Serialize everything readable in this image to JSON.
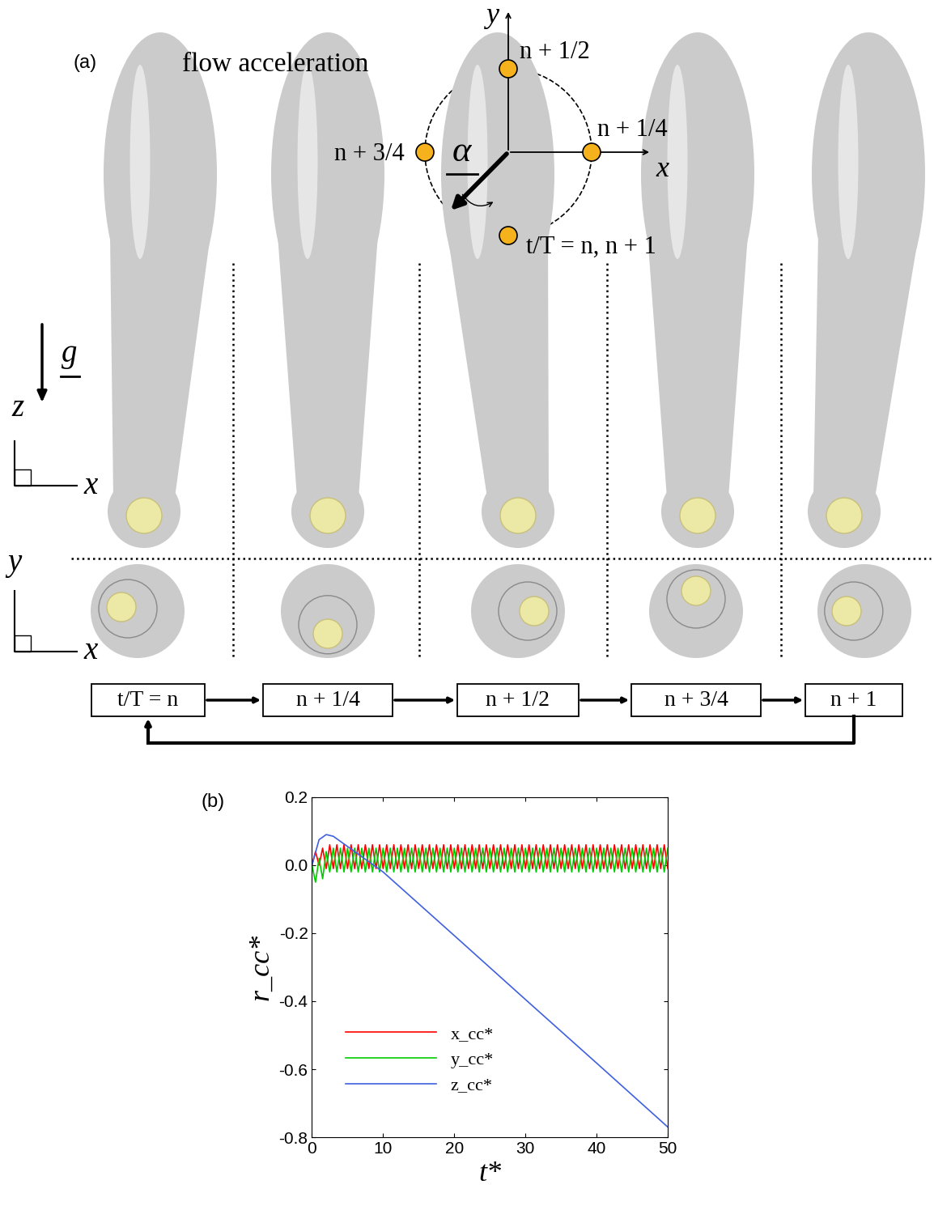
{
  "panel_a": {
    "label": "(a)",
    "title": "flow acceleration",
    "vector": "α",
    "axis_x": "x",
    "axis_y": "y",
    "phase_labels": {
      "top": "n + 1/2",
      "right": "n + 1/4",
      "left": "n + 3/4",
      "bottom": "t/T = n, n + 1"
    },
    "gravity": "g",
    "side_view_axes": [
      "z",
      "x"
    ],
    "top_view_axes": [
      "y",
      "x"
    ],
    "timeline": [
      "t/T = n",
      "n + 1/4",
      "n + 1/2",
      "n + 3/4",
      "n + 1"
    ]
  },
  "chart_data": {
    "type": "line",
    "panel_label": "(b)",
    "xlabel": "t*",
    "ylabel": "r_cc*",
    "xlim": [
      0,
      50
    ],
    "ylim": [
      -0.8,
      0.2
    ],
    "xticks": [
      0,
      10,
      20,
      30,
      40,
      50
    ],
    "yticks": [
      -0.8,
      -0.6,
      -0.4,
      -0.2,
      {
        "value": 0,
        "label": "0.0"
      },
      0.2
    ],
    "legend": "lower left",
    "series": [
      {
        "name": "x_cc*",
        "color": "#ff0000",
        "x": [
          0,
          0.5,
          1,
          1.5,
          2,
          2.5,
          3,
          3.5,
          4,
          4.5,
          5,
          5.5,
          6,
          6.5,
          7,
          7.5,
          8,
          8.5,
          9,
          9.5,
          10,
          10.5,
          11,
          11.5,
          12,
          12.5,
          13,
          13.5,
          14,
          14.5,
          15,
          15.5,
          16,
          16.5,
          17,
          17.5,
          18,
          18.5,
          19,
          19.5,
          20,
          20.5,
          21,
          21.5,
          22,
          22.5,
          23,
          23.5,
          24,
          24.5,
          25,
          25.5,
          26,
          26.5,
          27,
          27.5,
          28,
          28.5,
          29,
          29.5,
          30,
          30.5,
          31,
          31.5,
          32,
          32.5,
          33,
          33.5,
          34,
          34.5,
          35,
          35.5,
          36,
          36.5,
          37,
          37.5,
          38,
          38.5,
          39,
          39.5,
          40,
          40.5,
          41,
          41.5,
          42,
          42.5,
          43,
          43.5,
          44,
          44.5,
          45,
          45.5,
          46,
          46.5,
          47,
          47.5,
          48,
          48.5,
          49,
          49.5,
          50
        ],
        "values": [
          0.0,
          0.04,
          0.0,
          0.05,
          -0.01,
          0.06,
          -0.01,
          0.06,
          -0.01,
          0.06,
          -0.01,
          0.06,
          -0.01,
          0.06,
          -0.01,
          0.06,
          -0.01,
          0.06,
          -0.01,
          0.06,
          -0.01,
          0.06,
          -0.01,
          0.06,
          -0.01,
          0.06,
          -0.01,
          0.06,
          -0.01,
          0.06,
          -0.01,
          0.06,
          -0.01,
          0.06,
          -0.01,
          0.06,
          -0.01,
          0.06,
          -0.01,
          0.06,
          -0.01,
          0.06,
          -0.01,
          0.06,
          -0.01,
          0.06,
          -0.01,
          0.06,
          -0.01,
          0.06,
          -0.01,
          0.06,
          -0.01,
          0.06,
          -0.01,
          0.06,
          -0.01,
          0.06,
          -0.01,
          0.06,
          -0.01,
          0.06,
          -0.01,
          0.06,
          -0.01,
          0.06,
          -0.01,
          0.06,
          -0.01,
          0.06,
          -0.01,
          0.06,
          -0.01,
          0.06,
          -0.01,
          0.06,
          -0.01,
          0.06,
          -0.01,
          0.06,
          -0.01,
          0.06,
          -0.01,
          0.06,
          -0.01,
          0.06,
          -0.01,
          0.06,
          -0.01,
          0.06,
          -0.01,
          0.06,
          -0.01,
          0.06,
          -0.01,
          0.06,
          -0.01,
          0.06,
          -0.01,
          0.06,
          -0.01
        ]
      },
      {
        "name": "y_cc*",
        "color": "#00cc00",
        "x": [
          0,
          0.5,
          1,
          1.5,
          2,
          2.5,
          3,
          3.5,
          4,
          4.5,
          5,
          5.5,
          6,
          6.5,
          7,
          7.5,
          8,
          8.5,
          9,
          9.5,
          10,
          10.5,
          11,
          11.5,
          12,
          12.5,
          13,
          13.5,
          14,
          14.5,
          15,
          15.5,
          16,
          16.5,
          17,
          17.5,
          18,
          18.5,
          19,
          19.5,
          20,
          20.5,
          21,
          21.5,
          22,
          22.5,
          23,
          23.5,
          24,
          24.5,
          25,
          25.5,
          26,
          26.5,
          27,
          27.5,
          28,
          28.5,
          29,
          29.5,
          30,
          30.5,
          31,
          31.5,
          32,
          32.5,
          33,
          33.5,
          34,
          34.5,
          35,
          35.5,
          36,
          36.5,
          37,
          37.5,
          38,
          38.5,
          39,
          39.5,
          40,
          40.5,
          41,
          41.5,
          42,
          42.5,
          43,
          43.5,
          44,
          44.5,
          45,
          45.5,
          46,
          46.5,
          47,
          47.5,
          48,
          48.5,
          49,
          49.5,
          50
        ],
        "values": [
          0.0,
          -0.05,
          0.02,
          -0.04,
          0.04,
          -0.02,
          0.05,
          -0.02,
          0.05,
          -0.02,
          0.05,
          -0.02,
          0.05,
          -0.02,
          0.05,
          -0.02,
          0.05,
          -0.02,
          0.05,
          -0.02,
          0.05,
          -0.02,
          0.05,
          -0.02,
          0.05,
          -0.02,
          0.05,
          -0.02,
          0.05,
          -0.02,
          0.05,
          -0.02,
          0.05,
          -0.02,
          0.05,
          -0.02,
          0.05,
          -0.02,
          0.05,
          -0.02,
          0.05,
          -0.02,
          0.05,
          -0.02,
          0.05,
          -0.02,
          0.05,
          -0.02,
          0.05,
          -0.02,
          0.05,
          -0.02,
          0.05,
          -0.02,
          0.05,
          -0.02,
          0.05,
          -0.02,
          0.05,
          -0.02,
          0.05,
          -0.02,
          0.05,
          -0.02,
          0.05,
          -0.02,
          0.05,
          -0.02,
          0.05,
          -0.02,
          0.05,
          -0.02,
          0.05,
          -0.02,
          0.05,
          -0.02,
          0.05,
          -0.02,
          0.05,
          -0.02,
          0.05,
          -0.02,
          0.05,
          -0.02,
          0.05,
          -0.02,
          0.05,
          -0.02,
          0.05,
          -0.02,
          0.05,
          -0.02,
          0.05,
          -0.02,
          0.05,
          -0.02,
          0.05,
          -0.02,
          0.05,
          -0.02,
          0.05
        ]
      },
      {
        "name": "z_cc*",
        "color": "#4060e0",
        "x": [
          0,
          1,
          2,
          3,
          5,
          10,
          20,
          30,
          40,
          50
        ],
        "values": [
          0.0,
          0.075,
          0.09,
          0.085,
          0.055,
          -0.02,
          -0.207,
          -0.395,
          -0.582,
          -0.77
        ]
      }
    ]
  }
}
